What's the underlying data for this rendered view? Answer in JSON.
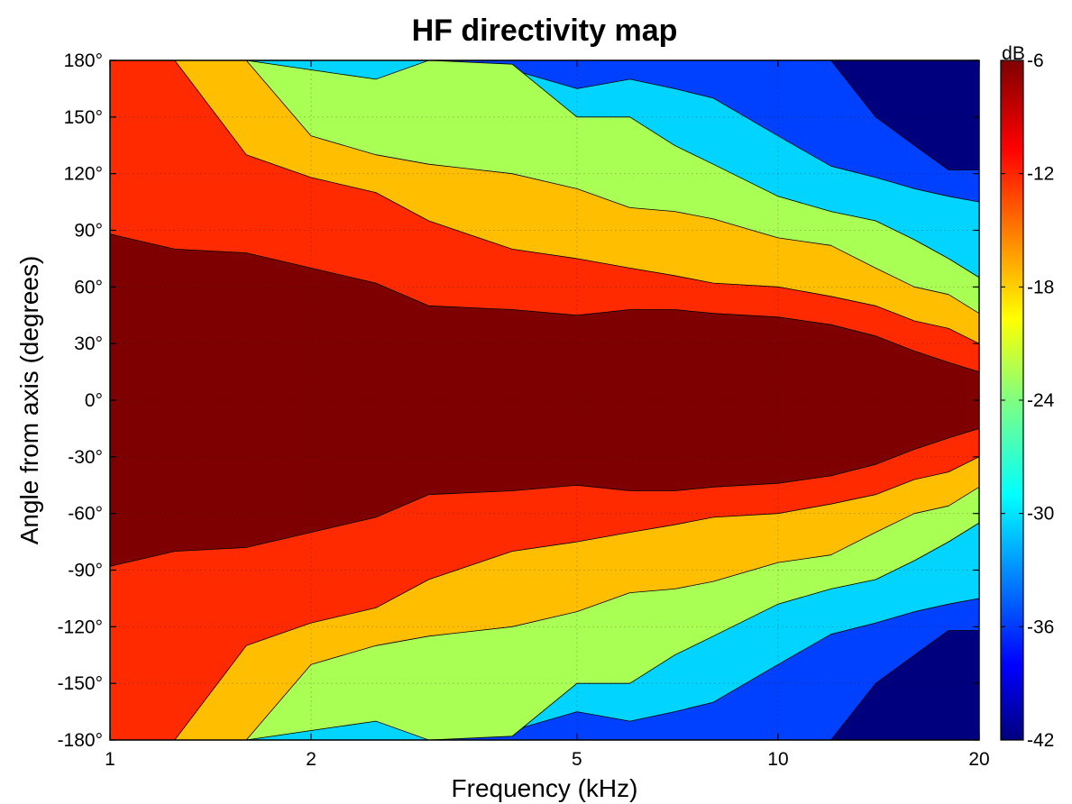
{
  "chart_data": {
    "type": "heatmap",
    "subtype": "filled-contour",
    "title": "HF directivity map",
    "xlabel": "Frequency (kHz)",
    "ylabel": "Angle from axis (degrees)",
    "x_scale": "log",
    "xlim": [
      1,
      20
    ],
    "ylim": [
      -180,
      180
    ],
    "xticks": [
      1,
      2,
      5,
      10,
      20
    ],
    "xtick_labels": [
      "1",
      "2",
      "5",
      "10",
      "20"
    ],
    "yticks": [
      180,
      150,
      120,
      90,
      60,
      30,
      0,
      -30,
      -60,
      -90,
      -120,
      -150,
      -180
    ],
    "ytick_labels": [
      "180°",
      "150°",
      "120°",
      "90°",
      "60°",
      "30°",
      "0°",
      "-30°",
      "-60°",
      "-90°",
      "-120°",
      "-150°",
      "-180°"
    ],
    "grid": true,
    "symmetric_about_zero": true,
    "colorbar": {
      "label": "dB",
      "range": [
        -42,
        -6
      ],
      "ticks": [
        -6,
        -12,
        -18,
        -24,
        -30,
        -36,
        -42
      ],
      "tick_labels": [
        "-6",
        "-12",
        "-18",
        "-24",
        "-30",
        "-36",
        "-42"
      ],
      "colormap": "jet"
    },
    "levels": [
      {
        "min": -9,
        "max": -6,
        "color": "#7f0000"
      },
      {
        "min": -15,
        "max": -9,
        "color": "#ff2a00"
      },
      {
        "min": -20,
        "max": -15,
        "color": "#ffbf00"
      },
      {
        "min": -27,
        "max": -20,
        "color": "#aaff55"
      },
      {
        "min": -33,
        "max": -27,
        "color": "#00d4ff"
      },
      {
        "min": -38,
        "max": -33,
        "color": "#0040ff"
      },
      {
        "min": -42,
        "max": -38,
        "color": "#00007f"
      }
    ],
    "contour_boundaries_deg": {
      "frequency_khz": [
        1,
        1.25,
        1.6,
        2,
        2.5,
        3,
        4,
        5,
        6,
        7,
        8,
        10,
        12,
        14,
        16,
        18,
        20
      ],
      "level_-9": [
        88,
        80,
        78,
        70,
        62,
        50,
        48,
        45,
        48,
        48,
        46,
        44,
        40,
        34,
        26,
        20,
        15
      ],
      "level_-15": [
        180,
        180,
        130,
        118,
        110,
        95,
        80,
        75,
        70,
        66,
        62,
        60,
        55,
        50,
        42,
        38,
        30
      ],
      "level_-20": [
        180,
        180,
        180,
        140,
        130,
        125,
        120,
        112,
        102,
        100,
        96,
        86,
        82,
        70,
        60,
        56,
        46
      ],
      "level_-27": [
        180,
        180,
        180,
        175,
        170,
        180,
        178,
        150,
        150,
        135,
        125,
        108,
        100,
        95,
        85,
        75,
        65
      ],
      "level_-33": [
        180,
        180,
        180,
        180,
        180,
        180,
        175,
        165,
        170,
        165,
        160,
        140,
        124,
        118,
        112,
        108,
        105
      ],
      "level_-38": [
        180,
        180,
        180,
        180,
        180,
        180,
        180,
        180,
        180,
        180,
        180,
        180,
        180,
        150,
        135,
        122,
        122
      ]
    }
  }
}
